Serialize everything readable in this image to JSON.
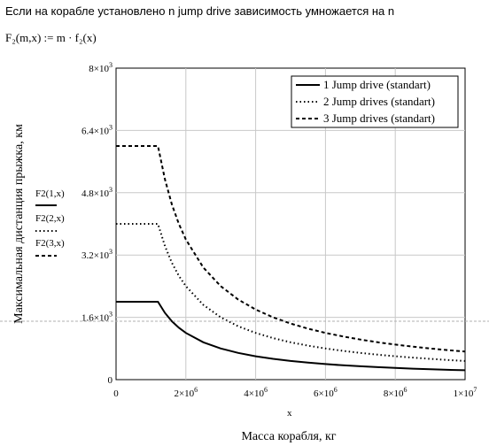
{
  "header": {
    "title": "Если на корабле установлено n jump drive зависимость умножается на n",
    "formula": "F₂(m,x) := m · f₂(x)"
  },
  "chart_data": {
    "type": "line",
    "xlabel": "x",
    "caption": "Масса корабля, кг",
    "ylabel": "Максимальная дистанция прыжка, км",
    "xlim": [
      0,
      10000000
    ],
    "ylim": [
      0,
      8000
    ],
    "x_ticks": [
      0,
      2000000,
      4000000,
      6000000,
      8000000,
      10000000
    ],
    "x_tick_labels": [
      {
        "base": "0",
        "exp": ""
      },
      {
        "base": "2×10",
        "exp": "6"
      },
      {
        "base": "4×10",
        "exp": "6"
      },
      {
        "base": "6×10",
        "exp": "6"
      },
      {
        "base": "8×10",
        "exp": "6"
      },
      {
        "base": "1×10",
        "exp": "7"
      }
    ],
    "y_ticks": [
      0,
      1600,
      3200,
      4800,
      6400,
      8000
    ],
    "y_tick_labels": [
      {
        "base": "0",
        "exp": ""
      },
      {
        "base": "1.6×10",
        "exp": "3"
      },
      {
        "base": "3.2×10",
        "exp": "3"
      },
      {
        "base": "4.8×10",
        "exp": "3"
      },
      {
        "base": "6.4×10",
        "exp": "3"
      },
      {
        "base": "8×10",
        "exp": "3"
      }
    ],
    "grid": true,
    "legend_position": "top-right",
    "side_legend": [
      "F2(1,x)",
      "F2(2,x)",
      "F2(3,x)"
    ],
    "x": [
      0,
      500000,
      1000000,
      1200000,
      1400000,
      1600000,
      1800000,
      2000000,
      2500000,
      3000000,
      3500000,
      4000000,
      4500000,
      5000000,
      5500000,
      6000000,
      6500000,
      7000000,
      7500000,
      8000000,
      8500000,
      9000000,
      9500000,
      10000000
    ],
    "series": [
      {
        "name": "1 Jump drive (standart)",
        "style": "solid",
        "values": [
          2000,
          2000,
          2000,
          2000,
          1714,
          1500,
          1333,
          1200,
          960,
          800,
          686,
          600,
          533,
          480,
          436,
          400,
          369,
          343,
          320,
          300,
          282,
          267,
          253,
          240
        ]
      },
      {
        "name": "2 Jump drives (standart)",
        "style": "dotted",
        "values": [
          4000,
          4000,
          4000,
          4000,
          3429,
          3000,
          2667,
          2400,
          1920,
          1600,
          1371,
          1200,
          1067,
          960,
          873,
          800,
          738,
          686,
          640,
          600,
          565,
          533,
          505,
          480
        ]
      },
      {
        "name": "3 Jump drives (standart)",
        "style": "dashed",
        "values": [
          6000,
          6000,
          6000,
          6000,
          5143,
          4500,
          4000,
          3600,
          2880,
          2400,
          2057,
          1800,
          1600,
          1440,
          1309,
          1200,
          1108,
          1029,
          960,
          900,
          847,
          800,
          758,
          720
        ]
      }
    ]
  }
}
